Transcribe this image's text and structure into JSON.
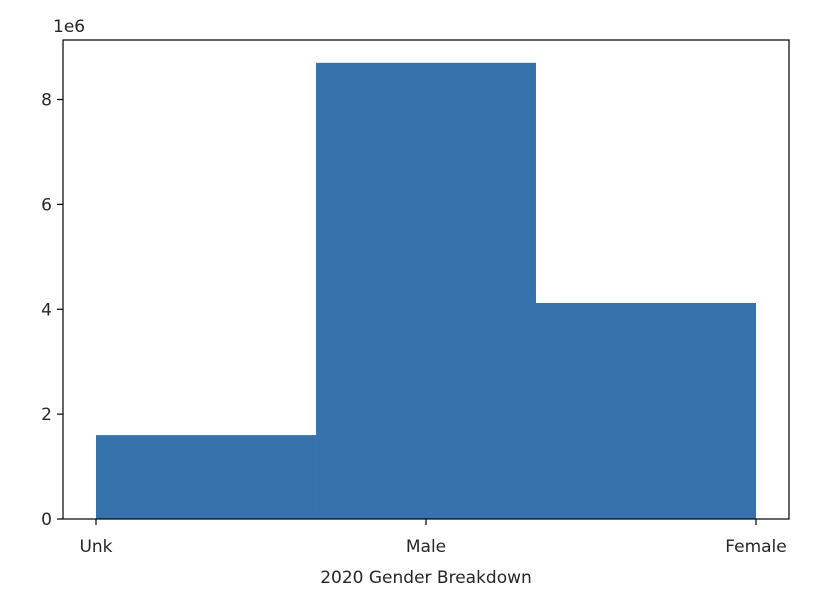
{
  "chart_data": {
    "type": "bar",
    "categories": [
      "Unk",
      "Male",
      "Female"
    ],
    "x_ticks": [
      {
        "label": "Unk",
        "value": 0
      },
      {
        "label": "Male",
        "value": 1
      },
      {
        "label": "Female",
        "value": 2
      }
    ],
    "bins": [
      {
        "x_start": 0,
        "x_end": 0.6667,
        "value": 1600000
      },
      {
        "x_start": 0.6667,
        "x_end": 1.3333,
        "value": 8700000
      },
      {
        "x_start": 1.3333,
        "x_end": 2,
        "value": 4120000
      }
    ],
    "xlim": [
      -0.1,
      2.1
    ],
    "ylim": [
      0,
      9135000
    ],
    "y_ticks": [
      0,
      2,
      4,
      6,
      8
    ],
    "y_scale_label": "1e6",
    "xlabel": "2020 Gender Breakdown",
    "ylabel": "",
    "title": "",
    "grid": false,
    "bar_color": "#3673ad"
  }
}
